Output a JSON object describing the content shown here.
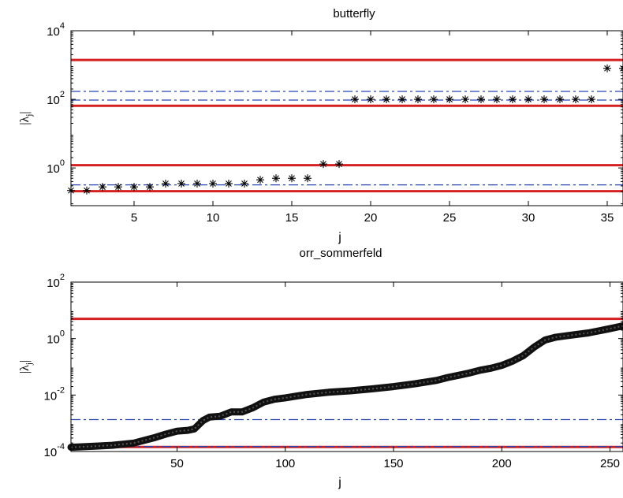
{
  "chart_data": [
    {
      "type": "scatter",
      "title": "butterfly",
      "xlabel": "j",
      "ylabel": "|λj|",
      "xlim": [
        1,
        36
      ],
      "ylim_log10": [
        -1.1,
        4
      ],
      "yscale": "log",
      "x_ticks": [
        5,
        10,
        15,
        20,
        25,
        30,
        35
      ],
      "y_ticks_exponents": [
        0,
        2,
        4
      ],
      "grid": false,
      "points": {
        "x": [
          1,
          2,
          3,
          4,
          5,
          6,
          7,
          8,
          9,
          10,
          11,
          12,
          13,
          14,
          15,
          16,
          17,
          18,
          19,
          20,
          21,
          22,
          23,
          24,
          25,
          26,
          27,
          28,
          29,
          30,
          31,
          32,
          33,
          34,
          35,
          36
        ],
        "y": [
          0.22,
          0.22,
          0.28,
          0.28,
          0.28,
          0.28,
          0.35,
          0.35,
          0.35,
          0.35,
          0.35,
          0.35,
          0.45,
          0.5,
          0.5,
          0.5,
          1.3,
          1.3,
          100,
          100,
          100,
          100,
          100,
          100,
          100,
          100,
          100,
          100,
          100,
          100,
          100,
          100,
          100,
          100,
          800,
          800
        ]
      },
      "hlines": [
        {
          "y": 1400,
          "style": "solid",
          "color": "#d42020"
        },
        {
          "y": 65,
          "style": "solid",
          "color": "#d42020"
        },
        {
          "y": 1.2,
          "style": "solid",
          "color": "#d42020"
        },
        {
          "y": 0.21,
          "style": "solid",
          "color": "#d42020"
        },
        {
          "y": 170,
          "style": "dashdot",
          "color": "#2846b4"
        },
        {
          "y": 95,
          "style": "dashdot",
          "color": "#2846b4"
        },
        {
          "y": 0.32,
          "style": "dashdot",
          "color": "#2846b4"
        }
      ]
    },
    {
      "type": "line",
      "title": "orr_sommerfeld",
      "xlabel": "j",
      "ylabel": "|λj|",
      "xlim": [
        1,
        256
      ],
      "ylim_log10": [
        -4,
        2
      ],
      "yscale": "log",
      "x_ticks": [
        50,
        100,
        150,
        200,
        250
      ],
      "y_ticks_exponents": [
        -4,
        -2,
        0,
        2
      ],
      "grid": false,
      "curve_log10": {
        "x": [
          1,
          10,
          20,
          30,
          40,
          45,
          50,
          55,
          58,
          62,
          65,
          70,
          75,
          80,
          85,
          90,
          95,
          100,
          110,
          120,
          130,
          140,
          150,
          160,
          170,
          175,
          180,
          185,
          190,
          195,
          200,
          205,
          210,
          215,
          220,
          225,
          230,
          240,
          250,
          256
        ],
        "y": [
          -3.85,
          -3.82,
          -3.78,
          -3.7,
          -3.5,
          -3.38,
          -3.28,
          -3.25,
          -3.2,
          -2.9,
          -2.78,
          -2.75,
          -2.6,
          -2.6,
          -2.45,
          -2.25,
          -2.15,
          -2.1,
          -1.98,
          -1.9,
          -1.85,
          -1.78,
          -1.7,
          -1.6,
          -1.48,
          -1.38,
          -1.3,
          -1.22,
          -1.12,
          -1.05,
          -0.95,
          -0.8,
          -0.6,
          -0.3,
          -0.05,
          0.05,
          0.1,
          0.2,
          0.35,
          0.45
        ]
      },
      "hlines": [
        {
          "y": 5,
          "style": "solid",
          "color": "#d42020"
        },
        {
          "y": 0.000145,
          "style": "solid",
          "color": "#d42020"
        },
        {
          "y": 0.00135,
          "style": "dashdot",
          "color": "#2846b4"
        },
        {
          "y": 0.00015,
          "style": "dashdot",
          "color": "#2846b4"
        }
      ]
    }
  ]
}
